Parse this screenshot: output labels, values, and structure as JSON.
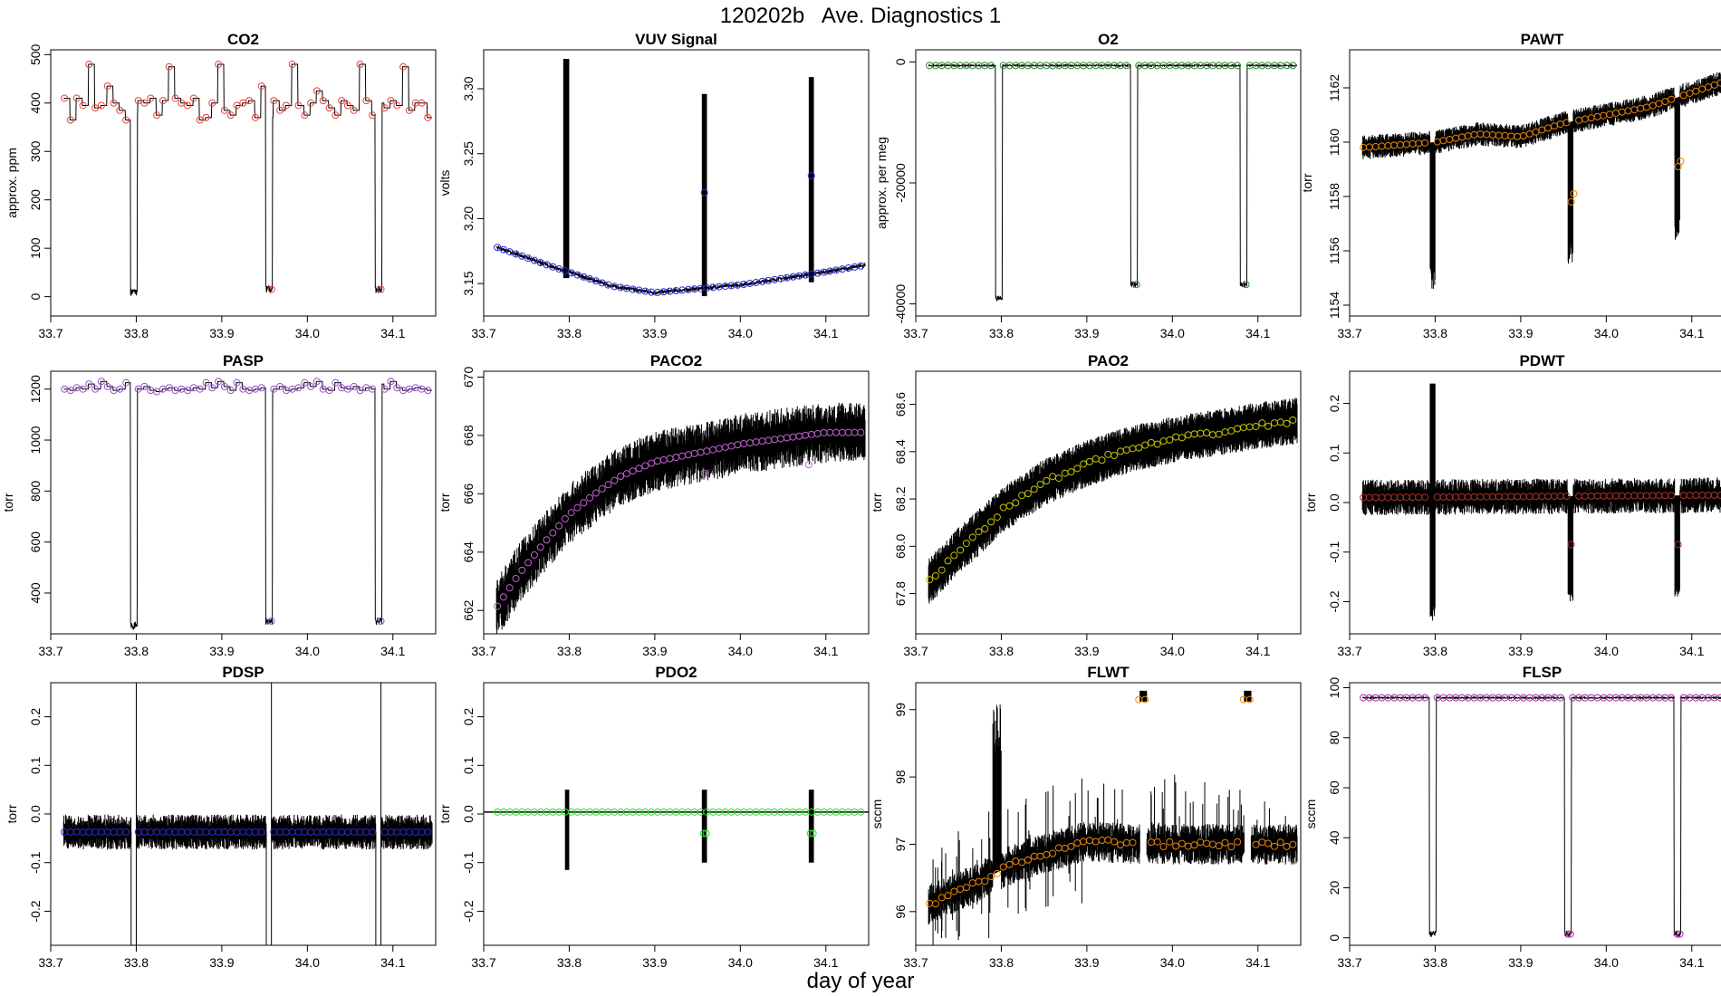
{
  "figure": {
    "title": "120202b   Ave. Diagnostics 1",
    "xlabel": "day of year"
  },
  "chart_data": [
    {
      "type": "line",
      "title": "CO2",
      "ylabel": "approx. ppm",
      "xlim": [
        33.7,
        34.15
      ],
      "ylim": [
        -40,
        510
      ],
      "xticks": [
        33.7,
        33.8,
        33.9,
        34.0,
        34.1
      ],
      "xtick_labels": [
        "33.7",
        "33.8",
        "33.9",
        "34.0",
        "34.1"
      ],
      "yticks": [
        0,
        100,
        200,
        300,
        400,
        500
      ],
      "ytick_labels": [
        "0",
        "100",
        "200",
        "300",
        "400",
        "500"
      ],
      "marker_color": "#e8423a",
      "pattern": "levels",
      "levels": [
        410,
        365,
        410,
        395,
        480,
        390,
        395,
        435,
        400,
        385,
        365,
        370,
        405,
        400,
        410,
        375,
        405,
        475,
        410,
        400,
        395,
        410,
        365,
        370,
        400,
        480,
        385,
        375,
        395,
        400,
        405,
        370,
        435,
        370,
        405,
        385,
        395,
        480,
        395,
        375,
        400,
        425,
        405,
        390,
        375,
        405,
        395,
        385,
        480,
        405,
        375,
        400,
        390,
        405,
        395,
        475,
        385,
        400,
        400,
        370
      ],
      "dips": [
        {
          "x": 33.797,
          "w": 0.008,
          "y": 10
        },
        {
          "x": 33.955,
          "w": 0.008,
          "y": 15
        },
        {
          "x": 34.083,
          "w": 0.008,
          "y": 15
        }
      ],
      "markers_at_dips": [
        33.958,
        34.086
      ],
      "dip_marker_y": 15
    },
    {
      "type": "line",
      "title": "VUV Signal",
      "ylabel": "volts",
      "xlim": [
        33.7,
        34.15
      ],
      "ylim": [
        3.125,
        3.33
      ],
      "xticks": [
        33.7,
        33.8,
        33.9,
        34.0,
        34.1
      ],
      "xtick_labels": [
        "33.7",
        "33.8",
        "33.9",
        "34.0",
        "34.1"
      ],
      "yticks": [
        3.15,
        3.2,
        3.25,
        3.3
      ],
      "ytick_labels": [
        "3.15",
        "3.20",
        "3.25",
        "3.30"
      ],
      "marker_color": "#2a2ad4",
      "pattern": "vuv",
      "base_curve": [
        [
          33.715,
          3.178
        ],
        [
          33.78,
          3.163
        ],
        [
          33.85,
          3.148
        ],
        [
          33.9,
          3.143
        ],
        [
          33.95,
          3.146
        ],
        [
          34.0,
          3.149
        ],
        [
          34.1,
          3.159
        ],
        [
          34.145,
          3.164
        ]
      ],
      "bands": [
        {
          "x0": 33.793,
          "x1": 33.8,
          "top": 3.323
        },
        {
          "x0": 33.955,
          "x1": 33.961,
          "top": 3.296
        },
        {
          "x0": 34.08,
          "x1": 34.086,
          "top": 3.309
        }
      ],
      "extra_markers": [
        [
          33.958,
          3.22
        ],
        [
          34.083,
          3.233
        ]
      ]
    },
    {
      "type": "line",
      "title": "O2",
      "ylabel": "approx. per meg",
      "xlim": [
        33.7,
        34.15
      ],
      "ylim": [
        -42000,
        2000
      ],
      "xticks": [
        33.7,
        33.8,
        33.9,
        34.0,
        34.1
      ],
      "xtick_labels": [
        "33.7",
        "33.8",
        "33.9",
        "34.0",
        "34.1"
      ],
      "yticks": [
        -40000,
        -20000,
        0
      ],
      "ytick_labels": [
        "-40000",
        "-20000",
        "0"
      ],
      "marker_color": "#2e8b2e",
      "pattern": "flat_dips",
      "base": -600,
      "dips": [
        {
          "x": 33.797,
          "w": 0.008,
          "y": -39000
        },
        {
          "x": 33.955,
          "w": 0.008,
          "y": -36800
        },
        {
          "x": 34.083,
          "w": 0.008,
          "y": -36800
        }
      ],
      "markers_at_dips": [
        33.958,
        34.086
      ],
      "dip_marker_y": -36800
    },
    {
      "type": "line",
      "title": "PAWT",
      "ylabel": "torr",
      "xlim": [
        33.7,
        34.15
      ],
      "ylim": [
        1153.6,
        1163.4
      ],
      "xticks": [
        33.7,
        33.8,
        33.9,
        34.0,
        34.1
      ],
      "xtick_labels": [
        "33.7",
        "33.8",
        "33.9",
        "34.0",
        "34.1"
      ],
      "yticks": [
        1154,
        1156,
        1158,
        1160,
        1162
      ],
      "ytick_labels": [
        "1154",
        "1156",
        "1158",
        "1160",
        "1162"
      ],
      "marker_color": "#e8860a",
      "pattern": "noisy_dips",
      "base_curve": [
        [
          33.715,
          1159.8
        ],
        [
          33.8,
          1160.0
        ],
        [
          33.85,
          1160.3
        ],
        [
          33.9,
          1160.2
        ],
        [
          33.95,
          1160.7
        ],
        [
          34.0,
          1161.0
        ],
        [
          34.05,
          1161.3
        ],
        [
          34.145,
          1162.3
        ]
      ],
      "noise": 0.55,
      "dips": [
        {
          "x": 33.797,
          "w": 0.006,
          "y": 1154.6
        },
        {
          "x": 33.958,
          "w": 0.006,
          "y": 1155.5
        },
        {
          "x": 34.083,
          "w": 0.006,
          "y": 1156.4
        }
      ],
      "extra_markers": [
        [
          33.959,
          1157.8
        ],
        [
          33.962,
          1158.1
        ],
        [
          34.084,
          1159.1
        ],
        [
          34.087,
          1159.3
        ]
      ]
    },
    {
      "type": "line",
      "title": "PASP",
      "ylabel": "torr",
      "xlim": [
        33.7,
        34.15
      ],
      "ylim": [
        240,
        1270
      ],
      "xticks": [
        33.7,
        33.8,
        33.9,
        34.0,
        34.1
      ],
      "xtick_labels": [
        "33.7",
        "33.8",
        "33.9",
        "34.0",
        "34.1"
      ],
      "yticks": [
        400,
        600,
        800,
        1000,
        1200
      ],
      "ytick_labels": [
        "400",
        "600",
        "800",
        "1000",
        "1200"
      ],
      "marker_color": "#9a4fd0",
      "pattern": "levels",
      "levels": [
        1200,
        1195,
        1205,
        1200,
        1220,
        1200,
        1230,
        1210,
        1195,
        1200,
        1225,
        1205,
        1200,
        1210,
        1195,
        1190,
        1200,
        1205,
        1195,
        1200,
        1195,
        1205,
        1200,
        1225,
        1205,
        1230,
        1210,
        1195,
        1225,
        1200,
        1195,
        1200,
        1205,
        1190,
        1200,
        1210,
        1195,
        1200,
        1205,
        1225,
        1210,
        1230,
        1200,
        1195,
        1225,
        1205,
        1200,
        1210,
        1195,
        1205,
        1200,
        1220,
        1200,
        1230,
        1205,
        1195,
        1200,
        1205,
        1200,
        1195
      ],
      "dips": [
        {
          "x": 33.797,
          "w": 0.008,
          "y": 270
        },
        {
          "x": 33.955,
          "w": 0.008,
          "y": 290
        },
        {
          "x": 34.083,
          "w": 0.008,
          "y": 290
        }
      ],
      "markers_at_dips": [
        33.958,
        34.086
      ],
      "dip_marker_y": 290
    },
    {
      "type": "line",
      "title": "PACO2",
      "ylabel": "torr",
      "xlim": [
        33.7,
        34.15
      ],
      "ylim": [
        661.2,
        670.2
      ],
      "xticks": [
        33.7,
        33.8,
        33.9,
        34.0,
        34.1
      ],
      "xtick_labels": [
        "33.7",
        "33.8",
        "33.9",
        "34.0",
        "34.1"
      ],
      "yticks": [
        662,
        664,
        666,
        668,
        670
      ],
      "ytick_labels": [
        "662",
        "664",
        "666",
        "668",
        "670"
      ],
      "marker_color": "#c060d0",
      "pattern": "noisy_curve",
      "base_curve": [
        [
          33.715,
          662.1
        ],
        [
          33.74,
          663.2
        ],
        [
          33.77,
          664.3
        ],
        [
          33.8,
          665.3
        ],
        [
          33.83,
          666.0
        ],
        [
          33.86,
          666.6
        ],
        [
          33.9,
          667.1
        ],
        [
          33.95,
          667.4
        ],
        [
          34.0,
          667.7
        ],
        [
          34.05,
          667.9
        ],
        [
          34.1,
          668.1
        ],
        [
          34.145,
          668.1
        ]
      ],
      "noise": 1.3,
      "extra_markers": [
        [
          33.958,
          666.7
        ],
        [
          34.08,
          667.0
        ]
      ]
    },
    {
      "type": "line",
      "title": "PAO2",
      "ylabel": "torr",
      "xlim": [
        33.7,
        34.15
      ],
      "ylim": [
        67.63,
        68.74
      ],
      "xticks": [
        33.7,
        33.8,
        33.9,
        34.0,
        34.1
      ],
      "xtick_labels": [
        "33.7",
        "33.8",
        "33.9",
        "34.0",
        "34.1"
      ],
      "yticks": [
        67.8,
        68.0,
        68.2,
        68.4,
        68.6
      ],
      "ytick_labels": [
        "67.8",
        "68.0",
        "68.2",
        "68.4",
        "68.6"
      ],
      "marker_color": "#c7c400",
      "pattern": "pao2",
      "base_curve": [
        [
          33.715,
          67.85
        ],
        [
          33.75,
          67.98
        ],
        [
          33.78,
          68.08
        ],
        [
          33.8,
          68.15
        ],
        [
          33.85,
          68.27
        ],
        [
          33.9,
          68.35
        ],
        [
          33.95,
          68.41
        ],
        [
          34.0,
          68.45
        ],
        [
          34.05,
          68.48
        ],
        [
          34.1,
          68.51
        ],
        [
          34.145,
          68.53
        ]
      ],
      "band": 0.09,
      "band_top_max": 68.66
    },
    {
      "type": "line",
      "title": "PDWT",
      "ylabel": "torr",
      "xlim": [
        33.7,
        34.15
      ],
      "ylim": [
        -0.265,
        0.265
      ],
      "xticks": [
        33.7,
        33.8,
        33.9,
        34.0,
        34.1
      ],
      "xtick_labels": [
        "33.7",
        "33.8",
        "33.9",
        "34.0",
        "34.1"
      ],
      "yticks": [
        -0.2,
        -0.1,
        0.0,
        0.1,
        0.2
      ],
      "ytick_labels": [
        "-0.2",
        "-0.1",
        "0.0",
        "0.1",
        "0.2"
      ],
      "marker_color": "#b03030",
      "pattern": "noisy_dips",
      "base_curve": [
        [
          33.715,
          0.01
        ],
        [
          34.145,
          0.015
        ]
      ],
      "noise": 0.045,
      "dips": [
        {
          "x": 33.797,
          "w": 0.006,
          "y": -0.24,
          "spike": 0.24
        },
        {
          "x": 33.958,
          "w": 0.006,
          "y": -0.2
        },
        {
          "x": 34.083,
          "w": 0.006,
          "y": -0.19
        }
      ],
      "extra_markers": [
        [
          33.959,
          -0.085
        ],
        [
          34.084,
          -0.085
        ]
      ]
    },
    {
      "type": "line",
      "title": "PDSP",
      "ylabel": "torr",
      "xlim": [
        33.7,
        34.15
      ],
      "ylim": [
        -0.27,
        0.27
      ],
      "xticks": [
        33.7,
        33.8,
        33.9,
        34.0,
        34.1
      ],
      "xtick_labels": [
        "33.7",
        "33.8",
        "33.9",
        "34.0",
        "34.1"
      ],
      "yticks": [
        -0.2,
        -0.1,
        0.0,
        0.1,
        0.2
      ],
      "ytick_labels": [
        "-0.2",
        "-0.1",
        "0.0",
        "0.1",
        "0.2"
      ],
      "marker_color": "#2a2ad4",
      "pattern": "pdsp",
      "base": -0.037,
      "noise": 0.045,
      "dips": [
        {
          "x": 33.797,
          "w": 0.006
        },
        {
          "x": 33.955,
          "w": 0.006
        },
        {
          "x": 34.083,
          "w": 0.006
        }
      ]
    },
    {
      "type": "line",
      "title": "PDO2",
      "ylabel": "torr",
      "xlim": [
        33.7,
        34.15
      ],
      "ylim": [
        -0.27,
        0.27
      ],
      "xticks": [
        33.7,
        33.8,
        33.9,
        34.0,
        34.1
      ],
      "xtick_labels": [
        "33.7",
        "33.8",
        "33.9",
        "34.0",
        "34.1"
      ],
      "yticks": [
        -0.2,
        -0.1,
        0.0,
        0.1,
        0.2
      ],
      "ytick_labels": [
        "-0.2",
        "-0.1",
        "0.0",
        "0.1",
        "0.2"
      ],
      "marker_color": "#2ee02e",
      "pattern": "pdo2",
      "base": 0.004,
      "bands": [
        {
          "x0": 33.795,
          "x1": 33.8,
          "top": 0.05,
          "bottom": -0.115
        },
        {
          "x0": 33.955,
          "x1": 33.961,
          "top": 0.05,
          "bottom": -0.1
        },
        {
          "x0": 34.08,
          "x1": 34.086,
          "top": 0.05,
          "bottom": -0.1
        }
      ],
      "extra_markers": [
        [
          33.957,
          -0.04
        ],
        [
          33.96,
          -0.04
        ],
        [
          34.082,
          -0.04
        ],
        [
          34.085,
          -0.04
        ]
      ]
    },
    {
      "type": "line",
      "title": "FLWT",
      "ylabel": "sccm",
      "xlim": [
        33.7,
        34.15
      ],
      "ylim": [
        95.5,
        99.4
      ],
      "xticks": [
        33.7,
        33.8,
        33.9,
        34.0,
        34.1
      ],
      "xtick_labels": [
        "33.7",
        "33.8",
        "33.9",
        "34.0",
        "34.1"
      ],
      "yticks": [
        96,
        97,
        98,
        99
      ],
      "ytick_labels": [
        "96",
        "97",
        "98",
        "99"
      ],
      "marker_color": "#e8860a",
      "pattern": "flwt",
      "base_curve": [
        [
          33.715,
          96.1
        ],
        [
          33.75,
          96.3
        ],
        [
          33.79,
          96.55
        ],
        [
          33.82,
          96.75
        ],
        [
          33.86,
          96.9
        ],
        [
          33.9,
          97.05
        ],
        [
          33.955,
          97.0
        ],
        [
          34.145,
          97.0
        ]
      ],
      "hump": {
        "x0": 33.79,
        "x1": 33.8,
        "top": 99.1
      },
      "plateaus": [
        {
          "x0": 33.962,
          "x1": 33.97,
          "y": 99.2
        },
        {
          "x0": 34.084,
          "x1": 34.092,
          "y": 99.2
        }
      ]
    },
    {
      "type": "line",
      "title": "FLSP",
      "ylabel": "sccm",
      "xlim": [
        33.7,
        34.15
      ],
      "ylim": [
        -3,
        102
      ],
      "xticks": [
        33.7,
        33.8,
        33.9,
        34.0,
        34.1
      ],
      "xtick_labels": [
        "33.7",
        "33.8",
        "33.9",
        "34.0",
        "34.1"
      ],
      "yticks": [
        0,
        20,
        40,
        60,
        80,
        100
      ],
      "ytick_labels": [
        "0",
        "20",
        "40",
        "60",
        "80",
        "100"
      ],
      "marker_color": "#a02aa0",
      "pattern": "flat_dips",
      "base": 96,
      "dips": [
        {
          "x": 33.797,
          "w": 0.008,
          "y": 1.5
        },
        {
          "x": 33.955,
          "w": 0.008,
          "y": 1.5
        },
        {
          "x": 34.083,
          "w": 0.008,
          "y": 1.5
        }
      ],
      "markers_at_dips": [
        33.955,
        33.958,
        34.083,
        34.086
      ],
      "dip_marker_y": 1.5
    }
  ]
}
